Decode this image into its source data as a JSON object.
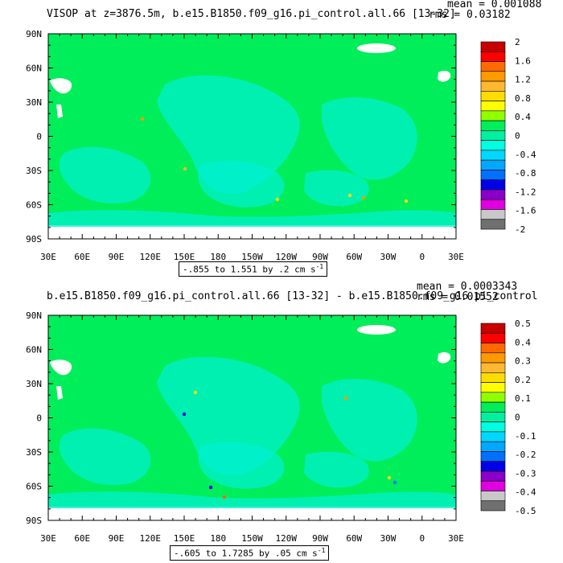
{
  "chart_data": [
    {
      "type": "heatmap",
      "title": "VISOP at z=3876.5m, b.e15.B1850.f09_g16.pi_control.all.66 [13-32]",
      "stats": {
        "mean": "mean = 0.001088",
        "rms": "rms = 0.03182"
      },
      "contour_info": "-.855 to 1.551 by .2 cm s",
      "contour_unit_sup": "-1",
      "xlim": [
        30,
        390
      ],
      "ylim": [
        -90,
        90
      ],
      "x_ticks": [
        "30E",
        "60E",
        "90E",
        "120E",
        "150E",
        "180",
        "150W",
        "120W",
        "90W",
        "60W",
        "30W",
        "0",
        "30E"
      ],
      "y_ticks": [
        "90N",
        "60N",
        "30N",
        "0",
        "30S",
        "60S",
        "90S"
      ],
      "colorbar_labels": [
        "2",
        "1.6",
        "1.2",
        "0.8",
        "0.4",
        "0",
        "-0.4",
        "-0.8",
        "-1.2",
        "-1.6",
        "-2"
      ],
      "colorbar_colors": [
        "#c80000",
        "#ff0000",
        "#ff6a00",
        "#ff9a00",
        "#ffb830",
        "#ffdc00",
        "#ffff00",
        "#90ff00",
        "#00ee5a",
        "#00f0a0",
        "#00ffe0",
        "#00d8ff",
        "#00a8ff",
        "#0070ff",
        "#0000e8",
        "#8a00c8",
        "#e000e0",
        "#c8c8c8",
        "#707070"
      ],
      "field_value_range": "near 0 (green / cyan), small positive spots near 60S"
    },
    {
      "type": "heatmap",
      "title": "b.e15.B1850.f09_g16.pi_control.all.66 [13-32] - b.e15.B1850.f09_g16.pi_control",
      "stats": {
        "mean": "mean = 0.0003343",
        "rms": "rms = 0.01552"
      },
      "contour_info": "-.605 to 1.7285 by .05 cm s",
      "contour_unit_sup": "-1",
      "xlim": [
        30,
        390
      ],
      "ylim": [
        -90,
        90
      ],
      "x_ticks": [
        "30E",
        "60E",
        "90E",
        "120E",
        "150E",
        "180",
        "150W",
        "120W",
        "90W",
        "60W",
        "30W",
        "0",
        "30E"
      ],
      "y_ticks": [
        "90N",
        "60N",
        "30N",
        "0",
        "30S",
        "60S",
        "90S"
      ],
      "colorbar_labels": [
        "0.5",
        "0.4",
        "0.3",
        "0.2",
        "0.1",
        "0",
        "-0.1",
        "-0.2",
        "-0.3",
        "-0.4",
        "-0.5"
      ],
      "colorbar_colors": [
        "#c80000",
        "#ff0000",
        "#ff6a00",
        "#ff9a00",
        "#ffb830",
        "#ffdc00",
        "#ffff00",
        "#90ff00",
        "#00ee5a",
        "#00f0a0",
        "#00ffe0",
        "#00d8ff",
        "#00a8ff",
        "#0070ff",
        "#0000e8",
        "#8a00c8",
        "#e000e0",
        "#c8c8c8",
        "#707070"
      ],
      "field_value_range": "near 0 (green / cyan), small spots near 60S"
    }
  ]
}
